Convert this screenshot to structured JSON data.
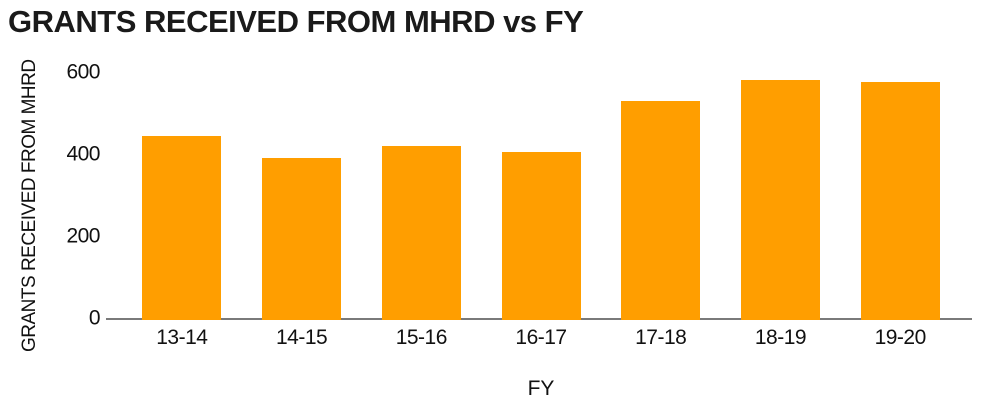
{
  "chart_data": {
    "type": "bar",
    "title": "GRANTS RECEIVED FROM MHRD vs FY",
    "xlabel": "FY",
    "ylabel": "GRANTS RECEIVED FROM MHRD",
    "categories": [
      "13-14",
      "14-15",
      "15-16",
      "16-17",
      "17-18",
      "18-19",
      "19-20"
    ],
    "values": [
      450,
      395,
      425,
      410,
      535,
      585,
      580
    ],
    "ylim": [
      0,
      600
    ],
    "yticks": [
      0,
      200,
      400,
      600
    ],
    "grid": false,
    "legend": "none",
    "bar_color": "#FF9E00",
    "axis_line_color": "#7A7A7A",
    "text_color": "#1A1A1A",
    "background_color": "#FFFFFF"
  }
}
